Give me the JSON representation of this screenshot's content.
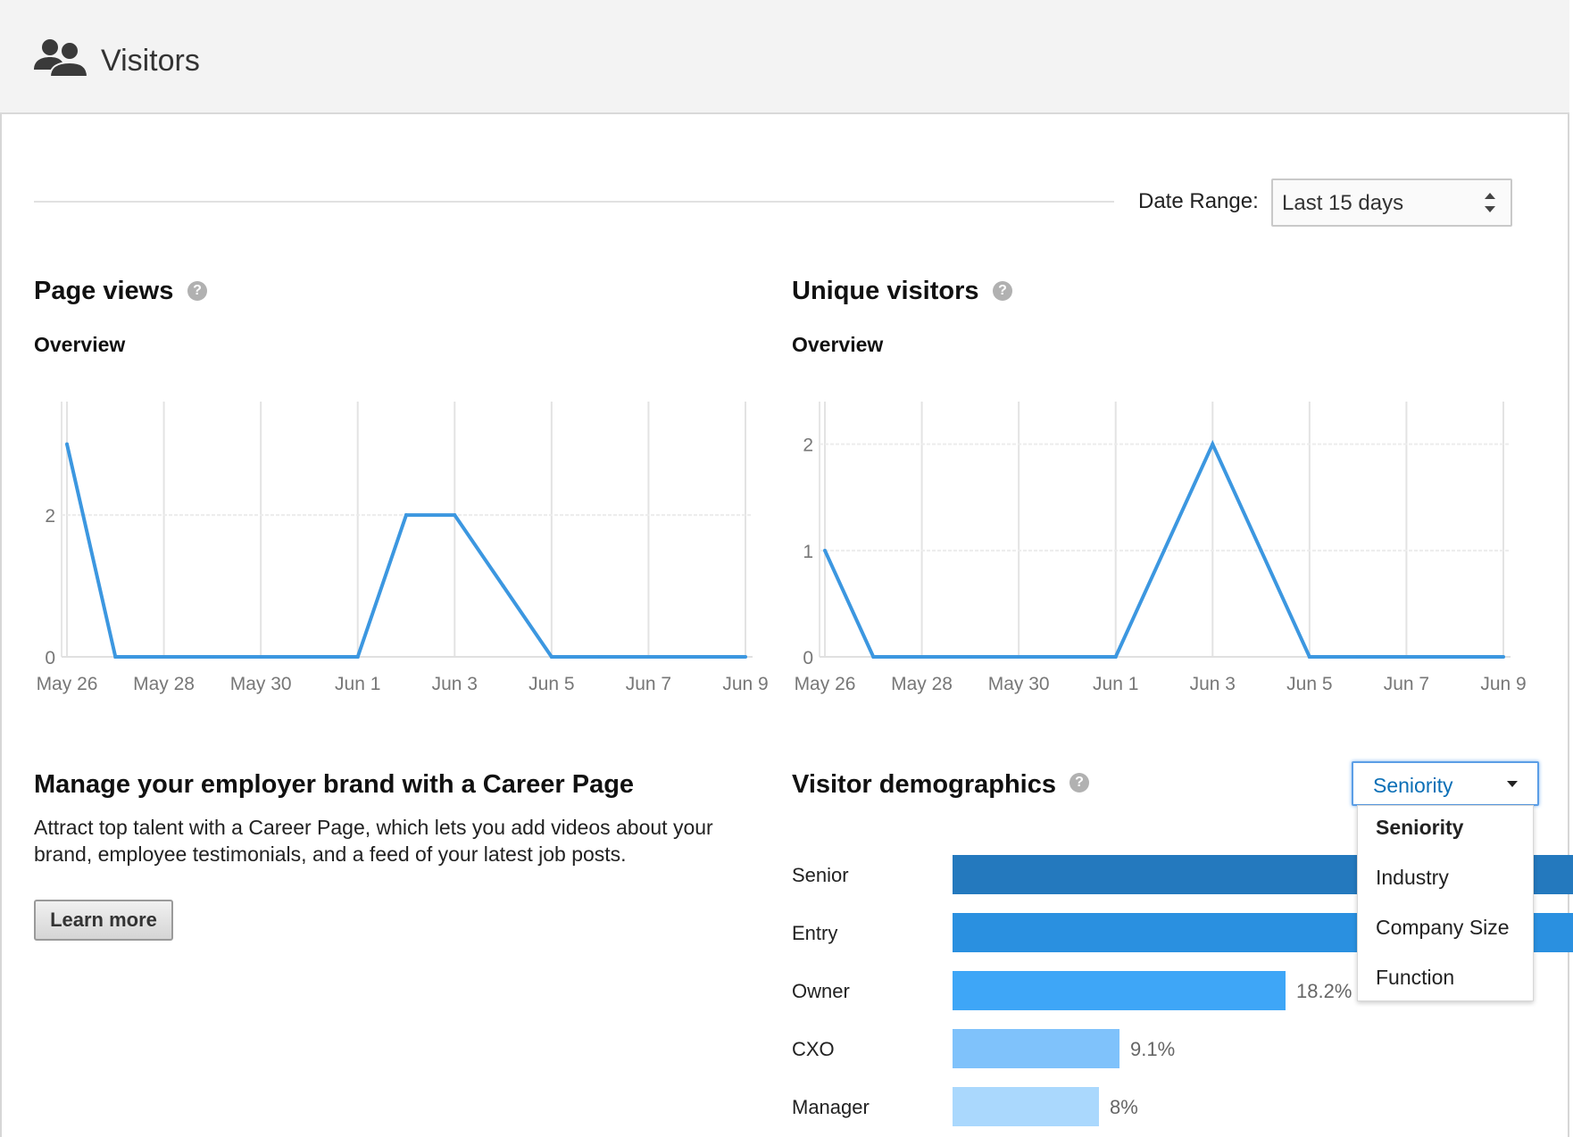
{
  "header": {
    "title": "Visitors",
    "icon": "users-icon"
  },
  "date_range": {
    "label": "Date Range:",
    "value": "Last 15 days"
  },
  "page_views": {
    "title": "Page views",
    "help": "?",
    "subtitle": "Overview",
    "chart_data": {
      "type": "line",
      "x": [
        "May 26",
        "May 27",
        "May 28",
        "May 29",
        "May 30",
        "May 31",
        "Jun 1",
        "Jun 2",
        "Jun 3",
        "Jun 4",
        "Jun 5",
        "Jun 6",
        "Jun 7",
        "Jun 8",
        "Jun 9"
      ],
      "x_tick_labels": [
        "May 26",
        "May 28",
        "May 30",
        "Jun 1",
        "Jun 3",
        "Jun 5",
        "Jun 7",
        "Jun 9"
      ],
      "y_tick_labels": [
        "0",
        "2"
      ],
      "values": [
        3,
        0,
        0,
        0,
        0,
        0,
        0,
        2,
        2,
        1,
        0,
        0,
        0,
        0,
        0
      ],
      "ylim": [
        0,
        3.6
      ],
      "color": "#3c97e0",
      "grid": true
    }
  },
  "unique_visitors": {
    "title": "Unique visitors",
    "help": "?",
    "subtitle": "Overview",
    "chart_data": {
      "type": "line",
      "x": [
        "May 26",
        "May 27",
        "May 28",
        "May 29",
        "May 30",
        "May 31",
        "Jun 1",
        "Jun 2",
        "Jun 3",
        "Jun 4",
        "Jun 5",
        "Jun 6",
        "Jun 7",
        "Jun 8",
        "Jun 9"
      ],
      "x_tick_labels": [
        "May 26",
        "May 28",
        "May 30",
        "Jun 1",
        "Jun 3",
        "Jun 5",
        "Jun 7",
        "Jun 9"
      ],
      "y_tick_labels": [
        "0",
        "1",
        "2"
      ],
      "values": [
        1,
        0,
        0,
        0,
        0,
        0,
        0,
        1,
        2,
        1,
        0,
        0,
        0,
        0,
        0
      ],
      "ylim": [
        0,
        2.4
      ],
      "color": "#3c97e0",
      "grid": true
    }
  },
  "career": {
    "title": "Manage your employer brand with a Career Page",
    "description": "Attract top talent with a Career Page, which lets you add videos about your brand, employee testimonials, and a feed of your latest job posts.",
    "button": "Learn more"
  },
  "demographics": {
    "title": "Visitor demographics",
    "help": "?",
    "selected": "Seniority",
    "options": [
      "Seniority",
      "Industry",
      "Company Size",
      "Function"
    ],
    "chart_data": {
      "type": "bar",
      "categories": [
        "Senior",
        "Entry",
        "Owner",
        "CXO",
        "Manager"
      ],
      "values": [
        null,
        null,
        18.2,
        9.1,
        8
      ],
      "value_labels": [
        "",
        "",
        "18.2%",
        "9.1%",
        "8%"
      ],
      "colors": [
        "#2479be",
        "#2a90e0",
        "#3ea6f7",
        "#7fc2fb",
        "#aad8fd"
      ]
    }
  }
}
